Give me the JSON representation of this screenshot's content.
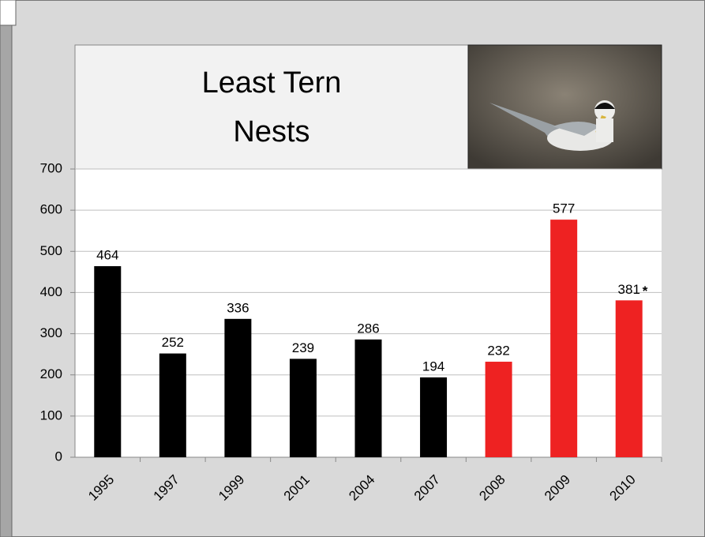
{
  "chart_data": {
    "type": "bar",
    "title": "Least Tern Nests",
    "categories": [
      "1995",
      "1997",
      "1999",
      "2001",
      "2004",
      "2007",
      "2008",
      "2009",
      "2010"
    ],
    "values": [
      464,
      252,
      336,
      239,
      286,
      194,
      232,
      577,
      381
    ],
    "colors": [
      "#000000",
      "#000000",
      "#000000",
      "#000000",
      "#000000",
      "#000000",
      "#ee2222",
      "#ee2222",
      "#ee2222"
    ],
    "annotation": {
      "text": "*",
      "category": "2010"
    },
    "ylim": [
      0,
      700
    ],
    "yticks": [
      0,
      100,
      200,
      300,
      400,
      500,
      600,
      700
    ],
    "grid": true
  }
}
